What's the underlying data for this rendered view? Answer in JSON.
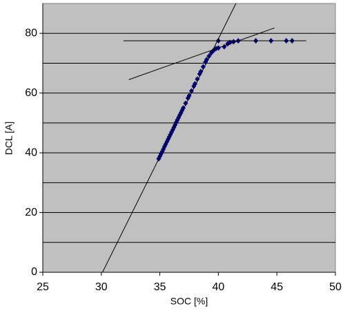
{
  "chart_data": {
    "type": "scatter",
    "xlabel": "SOC [%]",
    "ylabel": "DCL [A]",
    "xlim": [
      25,
      50
    ],
    "xticks": [
      25,
      30,
      35,
      40,
      45,
      50
    ],
    "ylim": [
      0,
      90
    ],
    "yticks": [
      0,
      20,
      40,
      60,
      80
    ],
    "ygrid": [
      10,
      20,
      30,
      40,
      50,
      60,
      70,
      80
    ],
    "background": "#c0c0c0",
    "series": [
      {
        "mode": "markers",
        "color": "#000080",
        "x": [
          34.9,
          35.0,
          35.1,
          35.2,
          35.3,
          35.4,
          35.5,
          35.6,
          35.7,
          35.8,
          35.9,
          36.0,
          36.1,
          36.2,
          36.3,
          36.4,
          36.5,
          36.6,
          36.7,
          36.8,
          36.9,
          37.0,
          37.2,
          37.4,
          37.5,
          37.7,
          37.9,
          38.0,
          38.2,
          38.4,
          38.5,
          38.7,
          38.9,
          39.0,
          39.2,
          39.4,
          39.6,
          39.8,
          40.0,
          40.0,
          40.5,
          40.8,
          41.0,
          41.3,
          41.7,
          43.2,
          44.5,
          45.8,
          46.3
        ],
        "values": [
          38.0,
          38.8,
          39.6,
          40.4,
          41.2,
          42.1,
          42.9,
          43.7,
          44.5,
          45.3,
          46.1,
          46.9,
          47.7,
          48.5,
          49.3,
          50.2,
          51.0,
          51.8,
          52.6,
          53.4,
          54.2,
          55.0,
          56.6,
          58.3,
          59.1,
          60.7,
          62.3,
          63.1,
          64.7,
          66.4,
          67.2,
          68.8,
          70.4,
          71.2,
          72.4,
          73.5,
          74.3,
          74.9,
          75.1,
          77.5,
          75.5,
          76.5,
          77.0,
          77.2,
          77.5,
          77.5,
          77.5,
          77.5,
          77.5
        ]
      },
      {
        "mode": "line",
        "color": "#000000",
        "x": [
          30.1,
          41.5
        ],
        "values": [
          0,
          90
        ]
      },
      {
        "mode": "line",
        "color": "#000000",
        "x": [
          32.35,
          44.8
        ],
        "values": [
          64.5,
          81.8
        ]
      },
      {
        "mode": "line",
        "color": "#000000",
        "x": [
          31.9,
          47.5
        ],
        "values": [
          77.5,
          77.5
        ]
      }
    ]
  }
}
